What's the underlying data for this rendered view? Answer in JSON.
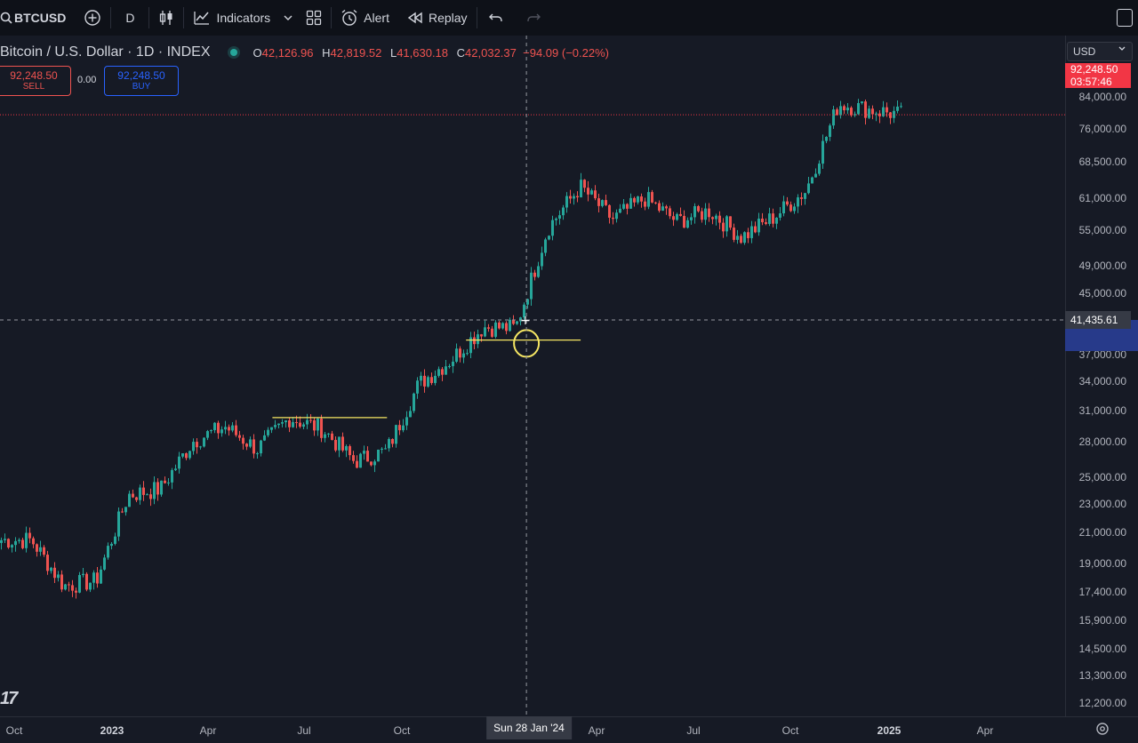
{
  "toolbar": {
    "symbol": "BTCUSD",
    "interval": "D",
    "indicators_label": "Indicators",
    "alert_label": "Alert",
    "replay_label": "Replay",
    "icons": [
      "search-icon",
      "add-symbol-icon",
      "candles-icon",
      "indicators-icon",
      "chevron-down-icon",
      "templates-icon",
      "alert-icon",
      "replay-icon",
      "undo-icon",
      "redo-icon",
      "fullscreen-icon"
    ]
  },
  "legend": {
    "title": "Bitcoin / U.S. Dollar · 1D · INDEX",
    "o_key": "O",
    "open": "42,126.96",
    "h_key": "H",
    "high": "42,819.52",
    "l_key": "L",
    "low": "41,630.18",
    "c_key": "C",
    "close": "42,032.37",
    "change": "−94.09 (−0.22%)"
  },
  "trade": {
    "sell_price": "92,248.50",
    "sell_label": "SELL",
    "spread": "0.00",
    "buy_price": "92,248.50",
    "buy_label": "BUY"
  },
  "price_axis": {
    "currency": "USD",
    "labels": [
      "84,000.00",
      "76,000.00",
      "68,500.00",
      "61,000.00",
      "55,000.00",
      "49,000.00",
      "45,000.00",
      "37,000.00",
      "34,000.00",
      "31,000.00",
      "28,000.00",
      "25,000.00",
      "23,000.00",
      "21,000.00",
      "19,000.00",
      "17,400.00",
      "15,900.00",
      "14,500.00",
      "13,300.00",
      "12,200.00"
    ],
    "last_price": "92,248.50",
    "countdown": "03:57:46",
    "crosshair_price": "41,435.61"
  },
  "time_axis": {
    "labels": [
      "Oct",
      "2023",
      "Apr",
      "Jul",
      "Oct",
      "Apr",
      "Jul",
      "Oct",
      "2025",
      "Apr"
    ],
    "crosshair_date": "Sun 28 Jan '24"
  },
  "colors": {
    "up": "#26a69a",
    "down": "#ef5350",
    "annotation": "#f5e663",
    "last_price": "#f23645"
  },
  "chart_data": {
    "type": "candlestick",
    "series_name": "Bitcoin / U.S. Dollar",
    "scale": "log",
    "x": [
      "2022-10",
      "2022-11",
      "2022-12",
      "2023-01",
      "2023-02",
      "2023-03",
      "2023-04",
      "2023-05",
      "2023-06",
      "2023-07",
      "2023-08",
      "2023-09",
      "2023-10",
      "2023-11",
      "2023-12",
      "2024-01",
      "2024-02",
      "2024-03",
      "2024-04",
      "2024-05",
      "2024-06",
      "2024-07",
      "2024-08",
      "2024-09",
      "2024-10",
      "2024-11",
      "2024-12",
      "2025-01"
    ],
    "y": [
      19500,
      16500,
      16800,
      23000,
      23500,
      28000,
      29500,
      27200,
      30500,
      29300,
      26000,
      27000,
      34500,
      37700,
      42500,
      42300,
      61000,
      71000,
      63000,
      68000,
      62500,
      65000,
      59000,
      63500,
      70000,
      96000,
      94000,
      92248.5
    ],
    "ylim": [
      12200,
      96000
    ],
    "annotations": [
      {
        "type": "horizontal-line",
        "price": 30500,
        "from": "2023-06",
        "to": "2023-09"
      },
      {
        "type": "horizontal-line",
        "price": 40500,
        "from": "2023-12",
        "to": "2024-03"
      },
      {
        "type": "circle",
        "price": 40000,
        "at": "2024-01-28"
      }
    ]
  }
}
